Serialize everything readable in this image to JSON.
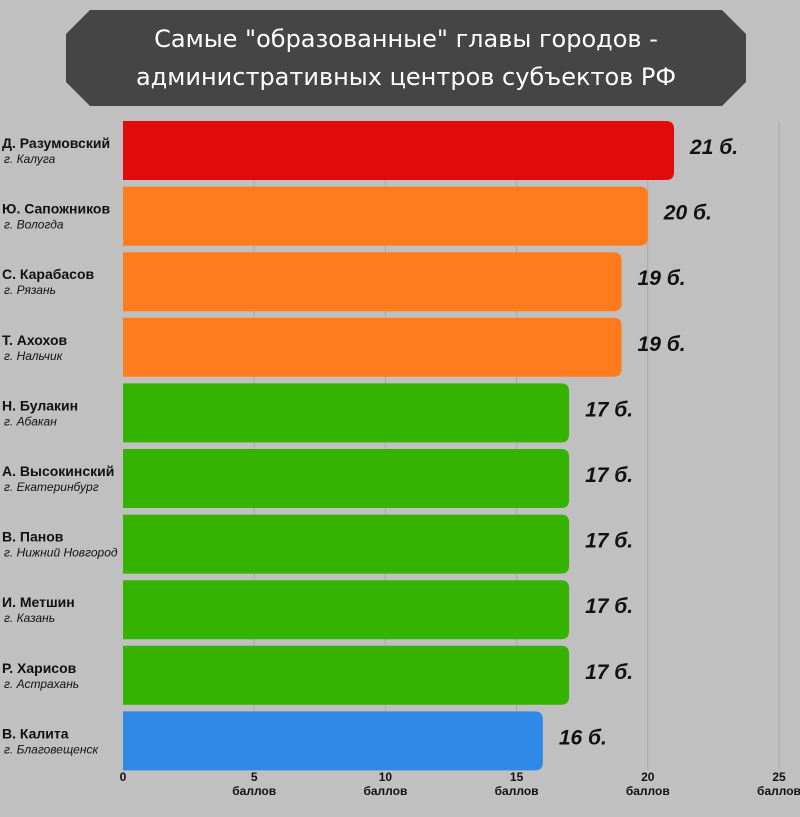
{
  "title": "Самые \"образованные\" главы городов - административных центров субъектов РФ",
  "colors": {
    "background": "#c0c0c0",
    "banner": "#454545",
    "red": "#e00c0c",
    "orange": "#ff7b1e",
    "green": "#35b300",
    "blue": "#2f89e6"
  },
  "chart_data": {
    "type": "bar",
    "orientation": "horizontal",
    "title": "Самые \"образованные\" главы городов - административных центров субъектов РФ",
    "xlim": [
      0,
      25
    ],
    "grid": true,
    "x_ticks": [
      {
        "value": 0,
        "label": "0",
        "unit": ""
      },
      {
        "value": 5,
        "label": "5",
        "unit": "баллов"
      },
      {
        "value": 10,
        "label": "10",
        "unit": "баллов"
      },
      {
        "value": 15,
        "label": "15",
        "unit": "баллов"
      },
      {
        "value": 20,
        "label": "20",
        "unit": "баллов"
      },
      {
        "value": 25,
        "label": "25",
        "unit": "баллов"
      }
    ],
    "bars": [
      {
        "name": "Д. Разумовский",
        "city": "г. Калуга",
        "value": 21,
        "label": "21 б.",
        "color": "red"
      },
      {
        "name": "Ю. Сапожников",
        "city": "г. Вологда",
        "value": 20,
        "label": "20 б.",
        "color": "orange"
      },
      {
        "name": "С. Карабасов",
        "city": "г. Рязань",
        "value": 19,
        "label": "19 б.",
        "color": "orange"
      },
      {
        "name": "Т. Ахохов",
        "city": "г. Нальчик",
        "value": 19,
        "label": "19 б.",
        "color": "orange"
      },
      {
        "name": "Н. Булакин",
        "city": "г. Абакан",
        "value": 17,
        "label": "17 б.",
        "color": "green"
      },
      {
        "name": "А. Высокинский",
        "city": "г. Екатеринбург",
        "value": 17,
        "label": "17 б.",
        "color": "green"
      },
      {
        "name": "В. Панов",
        "city": "г. Нижний Новгород",
        "value": 17,
        "label": "17 б.",
        "color": "green"
      },
      {
        "name": "И. Метшин",
        "city": "г. Казань",
        "value": 17,
        "label": "17 б.",
        "color": "green"
      },
      {
        "name": "Р. Харисов",
        "city": "г. Астрахань",
        "value": 17,
        "label": "17 б.",
        "color": "green"
      },
      {
        "name": "В. Калита",
        "city": "г. Благовещенск",
        "value": 16,
        "label": "16 б.",
        "color": "blue"
      }
    ]
  }
}
